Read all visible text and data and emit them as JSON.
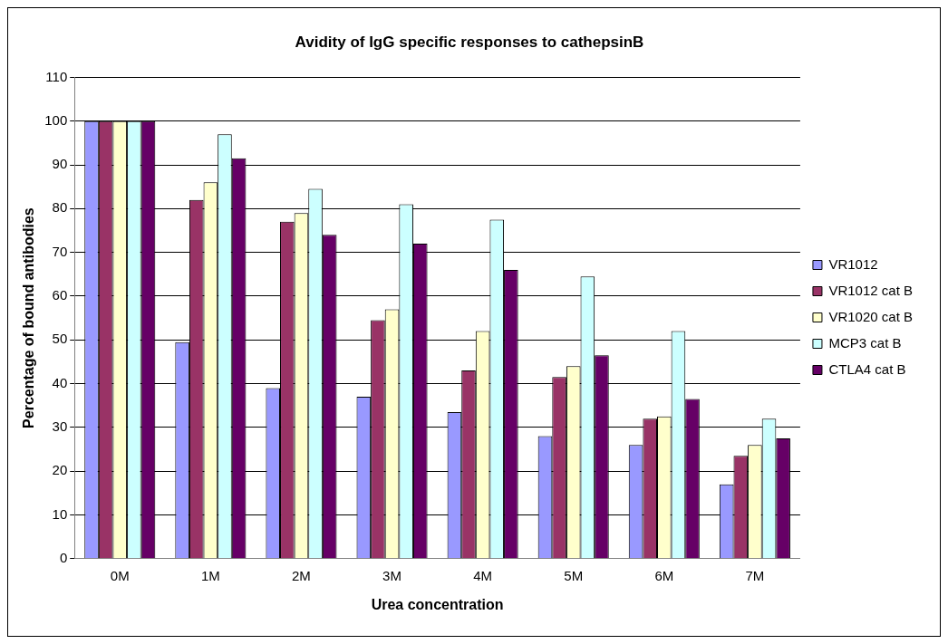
{
  "chart_data": {
    "type": "bar",
    "title": "Avidity of IgG specific responses to cathepsinB",
    "xlabel": "Urea concentration",
    "ylabel": "Percentage of bound antibodies",
    "categories": [
      "0M",
      "1M",
      "2M",
      "3M",
      "4M",
      "5M",
      "6M",
      "7M"
    ],
    "series": [
      {
        "name": "VR1012",
        "color": "#9999ff",
        "values": [
          100,
          49.5,
          39,
          37,
          33.5,
          28,
          26,
          17
        ]
      },
      {
        "name": "VR1012 cat B",
        "color": "#993366",
        "values": [
          100,
          82,
          77,
          54.5,
          43,
          41.5,
          32,
          23.5
        ]
      },
      {
        "name": "VR1020 cat B",
        "color": "#ffffcc",
        "values": [
          100,
          86,
          79,
          57,
          52,
          44,
          32.5,
          26
        ]
      },
      {
        "name": "MCP3 cat B",
        "color": "#ccffff",
        "values": [
          100,
          97,
          84.5,
          81,
          77.5,
          64.5,
          52,
          32
        ]
      },
      {
        "name": "CTLA4 cat B",
        "color": "#660066",
        "values": [
          100,
          91.5,
          74,
          72,
          66,
          46.5,
          36.5,
          27.5
        ]
      }
    ],
    "ylim": [
      0,
      110
    ],
    "yticks": [
      0,
      10,
      20,
      30,
      40,
      50,
      60,
      70,
      80,
      90,
      100,
      110
    ],
    "grid": "y",
    "legend": "right"
  }
}
